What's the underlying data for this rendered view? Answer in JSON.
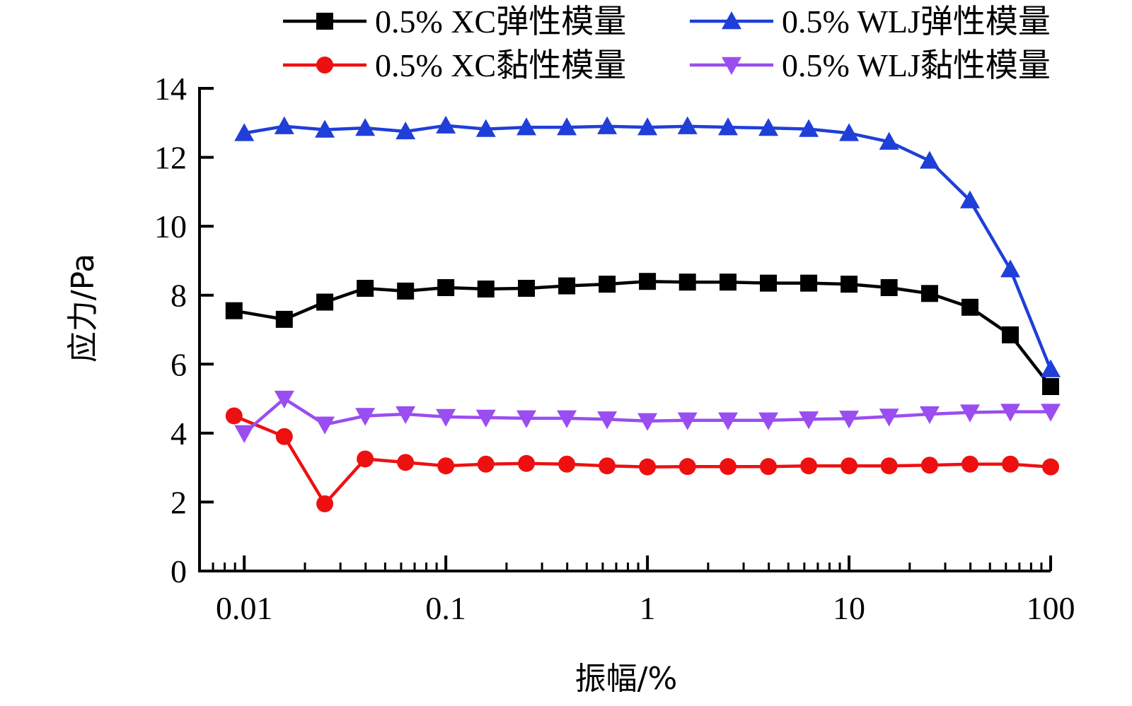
{
  "chart_data": {
    "type": "line",
    "xscale": "log",
    "xlim": [
      0.006,
      100
    ],
    "ylim": [
      0,
      14
    ],
    "xlabel": "振幅/%",
    "ylabel": "应力/Pa",
    "xticks": [
      0.01,
      0.1,
      1,
      10,
      100
    ],
    "xtick_labels": [
      "0.01",
      "0.1",
      "1",
      "10",
      "100"
    ],
    "yticks": [
      0,
      2,
      4,
      6,
      8,
      10,
      12,
      14
    ],
    "ytick_labels": [
      "0",
      "2",
      "4",
      "6",
      "8",
      "10",
      "12",
      "14"
    ],
    "grid": false,
    "legend_position": "top",
    "series": [
      {
        "name": "0.5% XC弹性模量",
        "color": "#000000",
        "marker": "square",
        "x": [
          0.0089,
          0.0158,
          0.0251,
          0.0398,
          0.0631,
          0.1,
          0.158,
          0.251,
          0.398,
          0.631,
          1,
          1.58,
          2.51,
          3.98,
          6.31,
          10,
          15.8,
          25.1,
          39.8,
          63.1,
          100
        ],
        "values": [
          7.55,
          7.3,
          7.8,
          8.2,
          8.12,
          8.22,
          8.18,
          8.2,
          8.27,
          8.32,
          8.4,
          8.38,
          8.38,
          8.35,
          8.35,
          8.32,
          8.22,
          8.05,
          7.65,
          6.85,
          5.35
        ]
      },
      {
        "name": "0.5% WLJ弹性模量",
        "color": "#1f3fd8",
        "marker": "triangle-up",
        "x": [
          0.01,
          0.0158,
          0.0251,
          0.0398,
          0.0631,
          0.1,
          0.158,
          0.251,
          0.398,
          0.631,
          1,
          1.58,
          2.51,
          3.98,
          6.31,
          10,
          15.8,
          25.1,
          39.8,
          63.1,
          100
        ],
        "values": [
          12.7,
          12.9,
          12.8,
          12.85,
          12.75,
          12.92,
          12.82,
          12.87,
          12.87,
          12.9,
          12.87,
          12.9,
          12.87,
          12.85,
          12.82,
          12.7,
          12.45,
          11.9,
          10.75,
          8.75,
          5.85
        ]
      },
      {
        "name": "0.5% XC黏性模量",
        "color": "#ee1010",
        "marker": "circle",
        "x": [
          0.0089,
          0.0158,
          0.0251,
          0.0398,
          0.0631,
          0.1,
          0.158,
          0.251,
          0.398,
          0.631,
          1,
          1.58,
          2.51,
          3.98,
          6.31,
          10,
          15.8,
          25.1,
          39.8,
          63.1,
          100
        ],
        "values": [
          4.5,
          3.9,
          1.95,
          3.25,
          3.15,
          3.05,
          3.1,
          3.12,
          3.1,
          3.05,
          3.02,
          3.03,
          3.03,
          3.03,
          3.05,
          3.05,
          3.05,
          3.07,
          3.1,
          3.1,
          3.02
        ]
      },
      {
        "name": "0.5% WLJ黏性模量",
        "color": "#9a4df0",
        "marker": "triangle-down",
        "x": [
          0.01,
          0.0158,
          0.0251,
          0.0398,
          0.0631,
          0.1,
          0.158,
          0.251,
          0.398,
          0.631,
          1,
          1.58,
          2.51,
          3.98,
          6.31,
          10,
          15.8,
          25.1,
          39.8,
          63.1,
          100
        ],
        "values": [
          4.0,
          5.0,
          4.25,
          4.5,
          4.55,
          4.47,
          4.45,
          4.43,
          4.43,
          4.4,
          4.35,
          4.37,
          4.37,
          4.37,
          4.4,
          4.42,
          4.48,
          4.55,
          4.6,
          4.62,
          4.62
        ]
      }
    ]
  }
}
